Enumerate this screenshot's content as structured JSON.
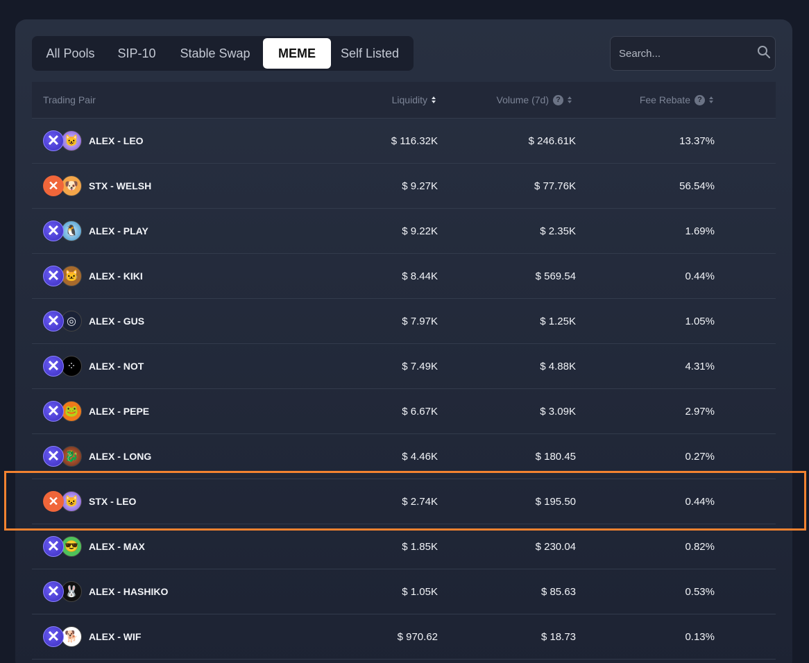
{
  "tabs": [
    {
      "label": "All Pools",
      "active": false
    },
    {
      "label": "SIP-10",
      "active": false
    },
    {
      "label": "Stable Swap",
      "active": false
    },
    {
      "label": "MEME",
      "active": true
    },
    {
      "label": "Self Listed",
      "active": false
    }
  ],
  "search": {
    "placeholder": "Search...",
    "value": ""
  },
  "table": {
    "headers": {
      "pair": "Trading Pair",
      "liquidity": "Liquidity",
      "volume": "Volume (7d)",
      "fee_rebate": "Fee Rebate"
    },
    "rows": [
      {
        "pair": "ALEX - LEO",
        "base_icon": "alex-icon",
        "quote_icon": "leo-icon",
        "liquidity": "$ 116.32K",
        "volume": "$ 246.61K",
        "fee_rebate": "13.37%"
      },
      {
        "pair": "STX - WELSH",
        "base_icon": "stx-icon",
        "quote_icon": "welsh-icon",
        "liquidity": "$ 9.27K",
        "volume": "$ 77.76K",
        "fee_rebate": "56.54%"
      },
      {
        "pair": "ALEX - PLAY",
        "base_icon": "alex-icon",
        "quote_icon": "play-icon",
        "liquidity": "$ 9.22K",
        "volume": "$ 2.35K",
        "fee_rebate": "1.69%"
      },
      {
        "pair": "ALEX - KIKI",
        "base_icon": "alex-icon",
        "quote_icon": "kiki-icon",
        "liquidity": "$ 8.44K",
        "volume": "$ 569.54",
        "fee_rebate": "0.44%"
      },
      {
        "pair": "ALEX - GUS",
        "base_icon": "alex-icon",
        "quote_icon": "gus-icon",
        "liquidity": "$ 7.97K",
        "volume": "$ 1.25K",
        "fee_rebate": "1.05%"
      },
      {
        "pair": "ALEX - NOT",
        "base_icon": "alex-icon",
        "quote_icon": "not-icon",
        "liquidity": "$ 7.49K",
        "volume": "$ 4.88K",
        "fee_rebate": "4.31%"
      },
      {
        "pair": "ALEX - PEPE",
        "base_icon": "alex-icon",
        "quote_icon": "pepe-icon",
        "liquidity": "$ 6.67K",
        "volume": "$ 3.09K",
        "fee_rebate": "2.97%"
      },
      {
        "pair": "ALEX - LONG",
        "base_icon": "alex-icon",
        "quote_icon": "long-icon",
        "liquidity": "$ 4.46K",
        "volume": "$ 180.45",
        "fee_rebate": "0.27%"
      },
      {
        "pair": "STX - LEO",
        "base_icon": "stx-icon",
        "quote_icon": "leo-icon",
        "liquidity": "$ 2.74K",
        "volume": "$ 195.50",
        "fee_rebate": "0.44%",
        "highlighted": true
      },
      {
        "pair": "ALEX - MAX",
        "base_icon": "alex-icon",
        "quote_icon": "max-icon",
        "liquidity": "$ 1.85K",
        "volume": "$ 230.04",
        "fee_rebate": "0.82%"
      },
      {
        "pair": "ALEX - HASHIKO",
        "base_icon": "alex-icon",
        "quote_icon": "hashiko-icon",
        "liquidity": "$ 1.05K",
        "volume": "$ 85.63",
        "fee_rebate": "0.53%"
      },
      {
        "pair": "ALEX - WIF",
        "base_icon": "alex-icon",
        "quote_icon": "wif-icon",
        "liquidity": "$ 970.62",
        "volume": "$ 18.73",
        "fee_rebate": "0.13%"
      }
    ]
  },
  "colors": {
    "background": "#151a28",
    "panel": "#283041",
    "highlight_border": "#f28230",
    "alex_brand": "#5546e6",
    "stx_brand": "#f0663a"
  }
}
